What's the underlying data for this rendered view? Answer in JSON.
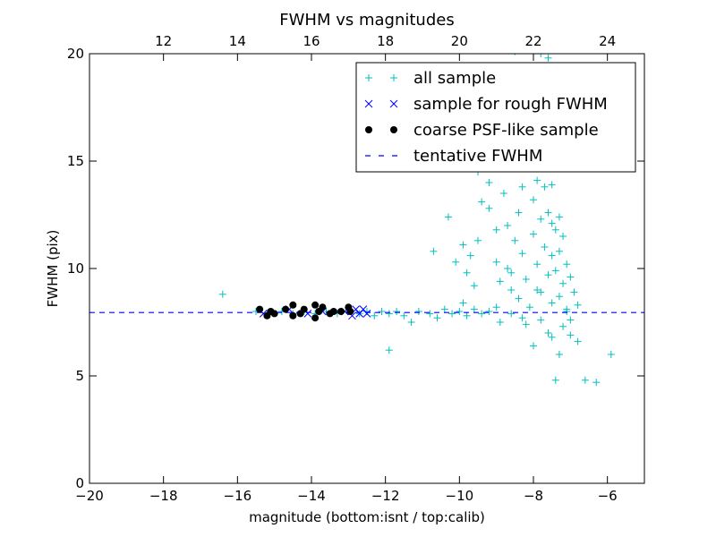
{
  "chart_data": {
    "type": "scatter",
    "title": "FWHM vs magnitudes",
    "xlabel": "magnitude (bottom:isnt / top:calib)",
    "ylabel": "FWHM (pix)",
    "xlim": [
      -20,
      -5
    ],
    "ylim": [
      0,
      20
    ],
    "xticks": [
      -20,
      -18,
      -16,
      -14,
      -12,
      -10,
      -8,
      -6
    ],
    "xtick_labels": [
      "−20",
      "−18",
      "−16",
      "−14",
      "−12",
      "−10",
      "−8",
      "−6"
    ],
    "yticks": [
      0,
      5,
      10,
      15,
      20
    ],
    "ytick_labels": [
      "0",
      "5",
      "10",
      "15",
      "20"
    ],
    "top_axis": {
      "offset": 30.0,
      "ticks": [
        12,
        14,
        16,
        18,
        20,
        22,
        24
      ],
      "tick_labels": [
        "12",
        "14",
        "16",
        "18",
        "20",
        "22",
        "24"
      ]
    },
    "grid": false,
    "legend_position": "top-right",
    "colors": {
      "all_sample": "#00bfbf",
      "rough_sample": "#0000ff",
      "psf_sample": "#000000",
      "tentative_line": "#0000ff"
    },
    "series": [
      {
        "name": "all sample",
        "marker": "+",
        "points": [
          [
            -16.4,
            8.8
          ],
          [
            -15.5,
            8.0
          ],
          [
            -15.2,
            7.9
          ],
          [
            -14.8,
            8.0
          ],
          [
            -14.5,
            7.9
          ],
          [
            -14.2,
            8.0
          ],
          [
            -13.9,
            7.9
          ],
          [
            -13.6,
            8.0
          ],
          [
            -13.3,
            7.9
          ],
          [
            -13.0,
            8.0
          ],
          [
            -12.7,
            7.9
          ],
          [
            -12.5,
            8.0
          ],
          [
            -12.3,
            7.8
          ],
          [
            -12.1,
            8.0
          ],
          [
            -11.9,
            7.9
          ],
          [
            -11.7,
            8.0
          ],
          [
            -11.5,
            7.8
          ],
          [
            -11.3,
            7.5
          ],
          [
            -11.1,
            8.0
          ],
          [
            -11.9,
            6.2
          ],
          [
            -10.8,
            7.9
          ],
          [
            -10.6,
            7.7
          ],
          [
            -10.4,
            8.1
          ],
          [
            -10.2,
            7.9
          ],
          [
            -10.0,
            8.0
          ],
          [
            -9.8,
            7.8
          ],
          [
            -9.6,
            8.1
          ],
          [
            -9.4,
            7.9
          ],
          [
            -9.2,
            8.0
          ],
          [
            -9.9,
            8.4
          ],
          [
            -10.7,
            10.8
          ],
          [
            -10.3,
            12.4
          ],
          [
            -10.1,
            10.3
          ],
          [
            -9.8,
            9.8
          ],
          [
            -9.9,
            11.1
          ],
          [
            -9.7,
            10.6
          ],
          [
            -9.6,
            9.2
          ],
          [
            -9.5,
            11.3
          ],
          [
            -9.4,
            13.1
          ],
          [
            -9.2,
            12.8
          ],
          [
            -9.0,
            11.8
          ],
          [
            -9.0,
            10.3
          ],
          [
            -8.9,
            9.4
          ],
          [
            -8.8,
            13.5
          ],
          [
            -8.7,
            12.0
          ],
          [
            -8.7,
            10.0
          ],
          [
            -8.6,
            9.0
          ],
          [
            -8.6,
            7.9
          ],
          [
            -8.5,
            11.3
          ],
          [
            -8.4,
            12.6
          ],
          [
            -8.3,
            13.8
          ],
          [
            -8.3,
            10.7
          ],
          [
            -8.2,
            9.5
          ],
          [
            -8.1,
            8.2
          ],
          [
            -8.0,
            13.2
          ],
          [
            -8.0,
            11.6
          ],
          [
            -7.9,
            14.1
          ],
          [
            -7.9,
            10.2
          ],
          [
            -7.8,
            12.3
          ],
          [
            -7.8,
            8.9
          ],
          [
            -7.7,
            13.8
          ],
          [
            -7.7,
            11.0
          ],
          [
            -7.6,
            9.7
          ],
          [
            -7.6,
            12.6
          ],
          [
            -7.5,
            12.1
          ],
          [
            -7.5,
            10.6
          ],
          [
            -7.5,
            8.4
          ],
          [
            -7.4,
            11.8
          ],
          [
            -7.4,
            9.9
          ],
          [
            -7.3,
            12.4
          ],
          [
            -7.3,
            10.8
          ],
          [
            -7.3,
            8.7
          ],
          [
            -7.2,
            11.5
          ],
          [
            -7.2,
            9.3
          ],
          [
            -7.1,
            10.2
          ],
          [
            -7.1,
            8.1
          ],
          [
            -7.0,
            9.6
          ],
          [
            -7.0,
            7.6
          ],
          [
            -6.9,
            8.9
          ],
          [
            -6.8,
            8.3
          ],
          [
            -8.0,
            6.4
          ],
          [
            -7.5,
            6.8
          ],
          [
            -7.2,
            7.3
          ],
          [
            -7.8,
            7.6
          ],
          [
            -8.2,
            7.4
          ],
          [
            -7.6,
            7.0
          ],
          [
            -7.0,
            6.9
          ],
          [
            -6.8,
            6.6
          ],
          [
            -7.3,
            6.0
          ],
          [
            -7.4,
            4.8
          ],
          [
            -6.6,
            4.8
          ],
          [
            -6.3,
            4.7
          ],
          [
            -5.9,
            6.0
          ],
          [
            -9.0,
            8.2
          ],
          [
            -8.9,
            7.5
          ],
          [
            -8.4,
            8.6
          ],
          [
            -8.6,
            9.8
          ],
          [
            -7.9,
            9.0
          ],
          [
            -8.3,
            7.7
          ],
          [
            -7.1,
            8.0
          ],
          [
            -9.3,
            20.3
          ],
          [
            -8.5,
            20.1
          ],
          [
            -7.8,
            20.0
          ],
          [
            -7.6,
            19.8
          ],
          [
            -9.0,
            17.0
          ],
          [
            -8.4,
            15.6
          ],
          [
            -9.5,
            14.5
          ],
          [
            -9.2,
            14.0
          ],
          [
            -7.5,
            13.9
          ],
          [
            -7.6,
            15.3
          ],
          [
            -8.1,
            16.8
          ],
          [
            -8.5,
            18.3
          ]
        ]
      },
      {
        "name": "sample for rough FWHM",
        "marker": "x",
        "points": [
          [
            -15.3,
            7.9
          ],
          [
            -14.6,
            8.1
          ],
          [
            -14.1,
            7.9
          ],
          [
            -13.7,
            8.0
          ],
          [
            -13.1,
            8.0
          ],
          [
            -12.9,
            7.8
          ],
          [
            -12.8,
            8.1
          ],
          [
            -12.7,
            7.9
          ],
          [
            -12.6,
            8.1
          ],
          [
            -12.5,
            7.9
          ]
        ]
      },
      {
        "name": "coarse PSF-like sample",
        "marker": "o",
        "points": [
          [
            -15.4,
            8.1
          ],
          [
            -15.2,
            7.8
          ],
          [
            -15.1,
            8.0
          ],
          [
            -15.0,
            7.9
          ],
          [
            -14.7,
            8.1
          ],
          [
            -14.5,
            8.3
          ],
          [
            -14.5,
            7.8
          ],
          [
            -14.3,
            7.9
          ],
          [
            -14.2,
            8.1
          ],
          [
            -13.9,
            8.3
          ],
          [
            -13.9,
            7.7
          ],
          [
            -13.8,
            8.0
          ],
          [
            -13.7,
            8.2
          ],
          [
            -13.5,
            7.9
          ],
          [
            -13.4,
            8.0
          ],
          [
            -13.2,
            8.0
          ],
          [
            -13.0,
            8.2
          ],
          [
            -12.95,
            8.0
          ]
        ]
      },
      {
        "name": "tentative FWHM",
        "type": "hline",
        "y": 7.95,
        "style": "dashed"
      }
    ]
  }
}
